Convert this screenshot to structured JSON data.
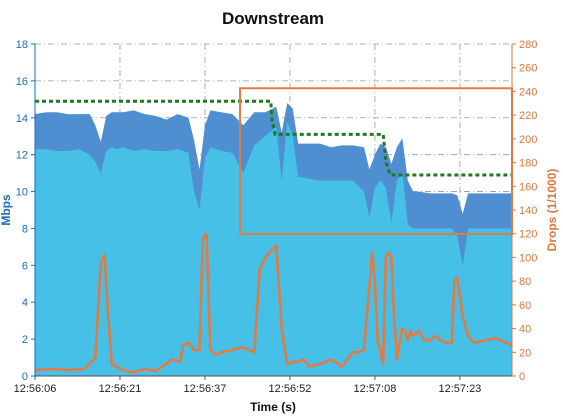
{
  "chart_data": {
    "type": "area",
    "title": "Downstream",
    "xlabel": "Time (s)",
    "ylabel_left": "Mbps",
    "ylabel_right": "Drops (1/1000)",
    "x_ticks": [
      "12:56:06",
      "12:56:21",
      "12:56:37",
      "12:56:52",
      "12:57:08",
      "12:57:23"
    ],
    "x_range_seconds": [
      0,
      87
    ],
    "x_tick_seconds": [
      0,
      15.5,
      31,
      46.5,
      62,
      77.5
    ],
    "ylim_left": [
      0,
      18
    ],
    "yticks_left": [
      0,
      2,
      4,
      6,
      8,
      10,
      12,
      14,
      16,
      18
    ],
    "ylim_right": [
      0,
      280
    ],
    "yticks_right": [
      0,
      20,
      40,
      60,
      80,
      100,
      120,
      140,
      160,
      180,
      200,
      220,
      240,
      260,
      280
    ],
    "grid": true,
    "colors": {
      "upper_band": "#4f8fd1",
      "lower_band": "#46c0e6",
      "drops_line": "#e07b45",
      "target_line": "#1f7a1f",
      "highlight_box": "#e07b45",
      "left_axis": "#1a6fb5",
      "right_axis": "#d9783f"
    },
    "series": [
      {
        "axis": "left",
        "x": [
          0,
          2,
          4,
          6,
          8,
          10,
          11,
          12,
          13,
          14,
          15,
          16,
          18,
          20,
          22,
          24,
          26,
          28,
          29,
          30,
          31,
          32,
          34,
          36,
          38,
          40,
          42,
          44,
          45,
          46,
          47,
          48,
          50,
          52,
          54,
          56,
          58,
          60,
          61,
          62,
          63,
          64,
          65,
          66,
          67,
          68,
          69,
          70,
          72,
          74,
          76,
          77,
          78,
          79,
          80,
          82,
          84,
          86,
          87
        ],
        "values": [
          14.2,
          14.3,
          14.3,
          14.2,
          14.2,
          14.2,
          13.6,
          12.7,
          14.1,
          14.3,
          14.3,
          14.3,
          14.4,
          14.2,
          14.1,
          13.9,
          14.2,
          14.0,
          12.8,
          11.2,
          13.6,
          14.4,
          14.3,
          14.2,
          13.6,
          14.3,
          14.3,
          14.6,
          13.2,
          14.8,
          14.5,
          12.6,
          12.6,
          12.6,
          12.4,
          12.5,
          12.5,
          12.4,
          11.2,
          12.0,
          12.6,
          12.4,
          11.5,
          12.4,
          12.9,
          10.6,
          10.0,
          10.0,
          9.9,
          9.9,
          9.9,
          9.8,
          8.8,
          9.9,
          9.9,
          9.9,
          9.9,
          9.9,
          9.9
        ]
      },
      {
        "axis": "left",
        "x": [
          0,
          2,
          4,
          6,
          8,
          10,
          11,
          12,
          13,
          14,
          15,
          16,
          18,
          20,
          22,
          24,
          26,
          28,
          29,
          30,
          31,
          32,
          34,
          36,
          38,
          40,
          42,
          44,
          45,
          46,
          47,
          48,
          50,
          52,
          54,
          56,
          58,
          60,
          61,
          62,
          63,
          64,
          65,
          66,
          67,
          68,
          69,
          70,
          72,
          74,
          76,
          77,
          78,
          79,
          80,
          82,
          84,
          86,
          87
        ],
        "values": [
          12.3,
          12.3,
          12.2,
          12.2,
          12.3,
          12.0,
          11.6,
          11.0,
          12.2,
          12.4,
          12.3,
          12.4,
          12.2,
          12.3,
          12.2,
          12.2,
          12.3,
          12.1,
          10.0,
          9.0,
          11.8,
          12.4,
          12.2,
          12.1,
          11.0,
          12.5,
          13.0,
          13.5,
          10.6,
          13.8,
          13.0,
          10.8,
          10.7,
          10.6,
          10.6,
          10.6,
          10.6,
          10.0,
          8.6,
          10.2,
          10.6,
          10.2,
          8.3,
          10.6,
          11.0,
          8.2,
          8.0,
          8.0,
          8.0,
          8.0,
          8.0,
          7.6,
          6.0,
          8.0,
          8.0,
          8.0,
          8.0,
          8.0,
          8.0
        ]
      },
      {
        "axis": "right",
        "x": [
          0,
          3,
          6,
          9,
          11,
          12,
          12.7,
          13.2,
          14,
          16,
          18,
          20,
          22,
          25,
          26.5,
          27,
          28,
          29,
          30,
          30.6,
          31,
          31.3,
          32,
          33,
          34,
          36,
          38,
          40,
          41,
          42,
          43,
          44,
          45,
          46,
          47,
          48,
          49,
          50,
          52,
          54,
          56,
          57,
          58,
          59,
          60,
          61.5,
          62,
          62.5,
          63.5,
          64,
          64.5,
          65,
          65.5,
          66,
          67,
          67.5,
          68,
          68.5,
          69,
          70,
          71,
          72,
          73,
          74,
          75,
          76,
          76.5,
          77,
          78,
          79,
          80,
          82,
          84,
          86,
          87
        ],
        "values": [
          5,
          6,
          5,
          6,
          15,
          95,
          102,
          60,
          10,
          5,
          3,
          6,
          4,
          14,
          12,
          26,
          28,
          22,
          22,
          115,
          119,
          119,
          22,
          18,
          20,
          22,
          24,
          20,
          90,
          100,
          105,
          110,
          40,
          10,
          12,
          12,
          14,
          8,
          10,
          14,
          8,
          14,
          20,
          20,
          22,
          104,
          80,
          30,
          10,
          101,
          104,
          100,
          50,
          14,
          40,
          38,
          30,
          38,
          34,
          38,
          30,
          30,
          34,
          30,
          28,
          28,
          80,
          83,
          50,
          34,
          28,
          30,
          32,
          28,
          26
        ]
      }
    ],
    "target_line": {
      "axis": "left",
      "x": [
        0,
        43,
        43.2,
        43.8,
        63.5,
        64,
        64.8,
        87
      ],
      "values": [
        14.9,
        14.9,
        13.9,
        13.1,
        13.1,
        11.6,
        10.9,
        10.9
      ]
    },
    "highlight_box": {
      "x": [
        37.4,
        87
      ],
      "ylim_left": [
        7.7,
        15.6
      ]
    }
  }
}
